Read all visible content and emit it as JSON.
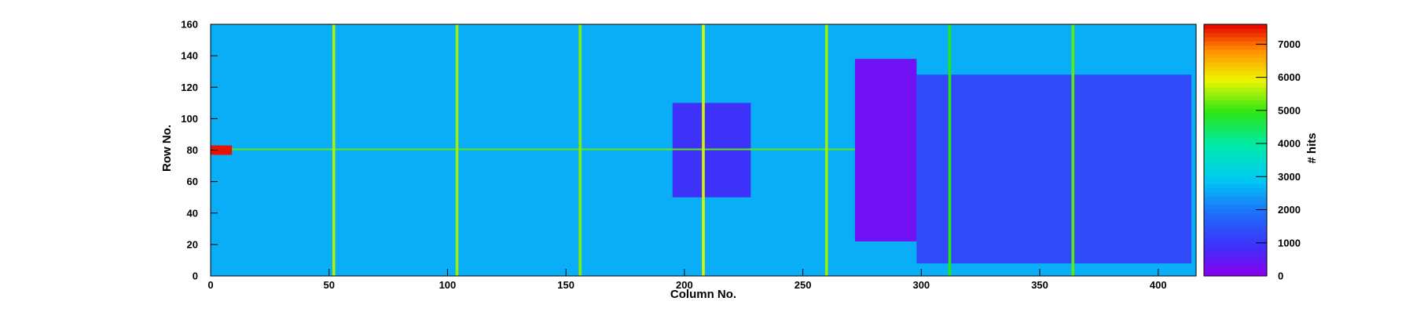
{
  "chart_data": {
    "type": "heatmap",
    "xlabel": "Column No.",
    "ylabel": "Row No.",
    "zlabel": "# hits",
    "xlim": [
      0,
      416
    ],
    "ylim": [
      0,
      160
    ],
    "zlim": [
      0,
      7600
    ],
    "x_ticks": [
      0,
      50,
      100,
      150,
      200,
      250,
      300,
      350,
      400
    ],
    "y_ticks": [
      0,
      20,
      40,
      60,
      80,
      100,
      120,
      140,
      160
    ],
    "z_ticks": [
      0,
      1000,
      2000,
      3000,
      4000,
      5000,
      6000,
      7000
    ],
    "colormap": "rainbow (violet-blue-cyan-green-yellow-red)",
    "background_level": 2600,
    "hot_columns": [
      {
        "column": 52,
        "value": 5600
      },
      {
        "column": 104,
        "value": 5500
      },
      {
        "column": 156,
        "value": 5400
      },
      {
        "column": 208,
        "value": 5800
      },
      {
        "column": 260,
        "value": 5500
      },
      {
        "column": 312,
        "value": 4900
      },
      {
        "column": 364,
        "value": 5200
      }
    ],
    "hot_rows": [
      {
        "row": 80,
        "from_column": 0,
        "to_column": 272,
        "value": 5200
      }
    ],
    "hot_spot": {
      "column": 1,
      "row": 80,
      "value": 7500
    },
    "low_regions": [
      {
        "label": "",
        "x": [
          272,
          298
        ],
        "y": [
          22,
          138
        ],
        "value": 300
      },
      {
        "label": "",
        "x": [
          298,
          414
        ],
        "y": [
          8,
          128
        ],
        "value": 1300
      },
      {
        "label": "",
        "x": [
          195,
          228
        ],
        "y": [
          50,
          110
        ],
        "value": 900
      }
    ]
  }
}
